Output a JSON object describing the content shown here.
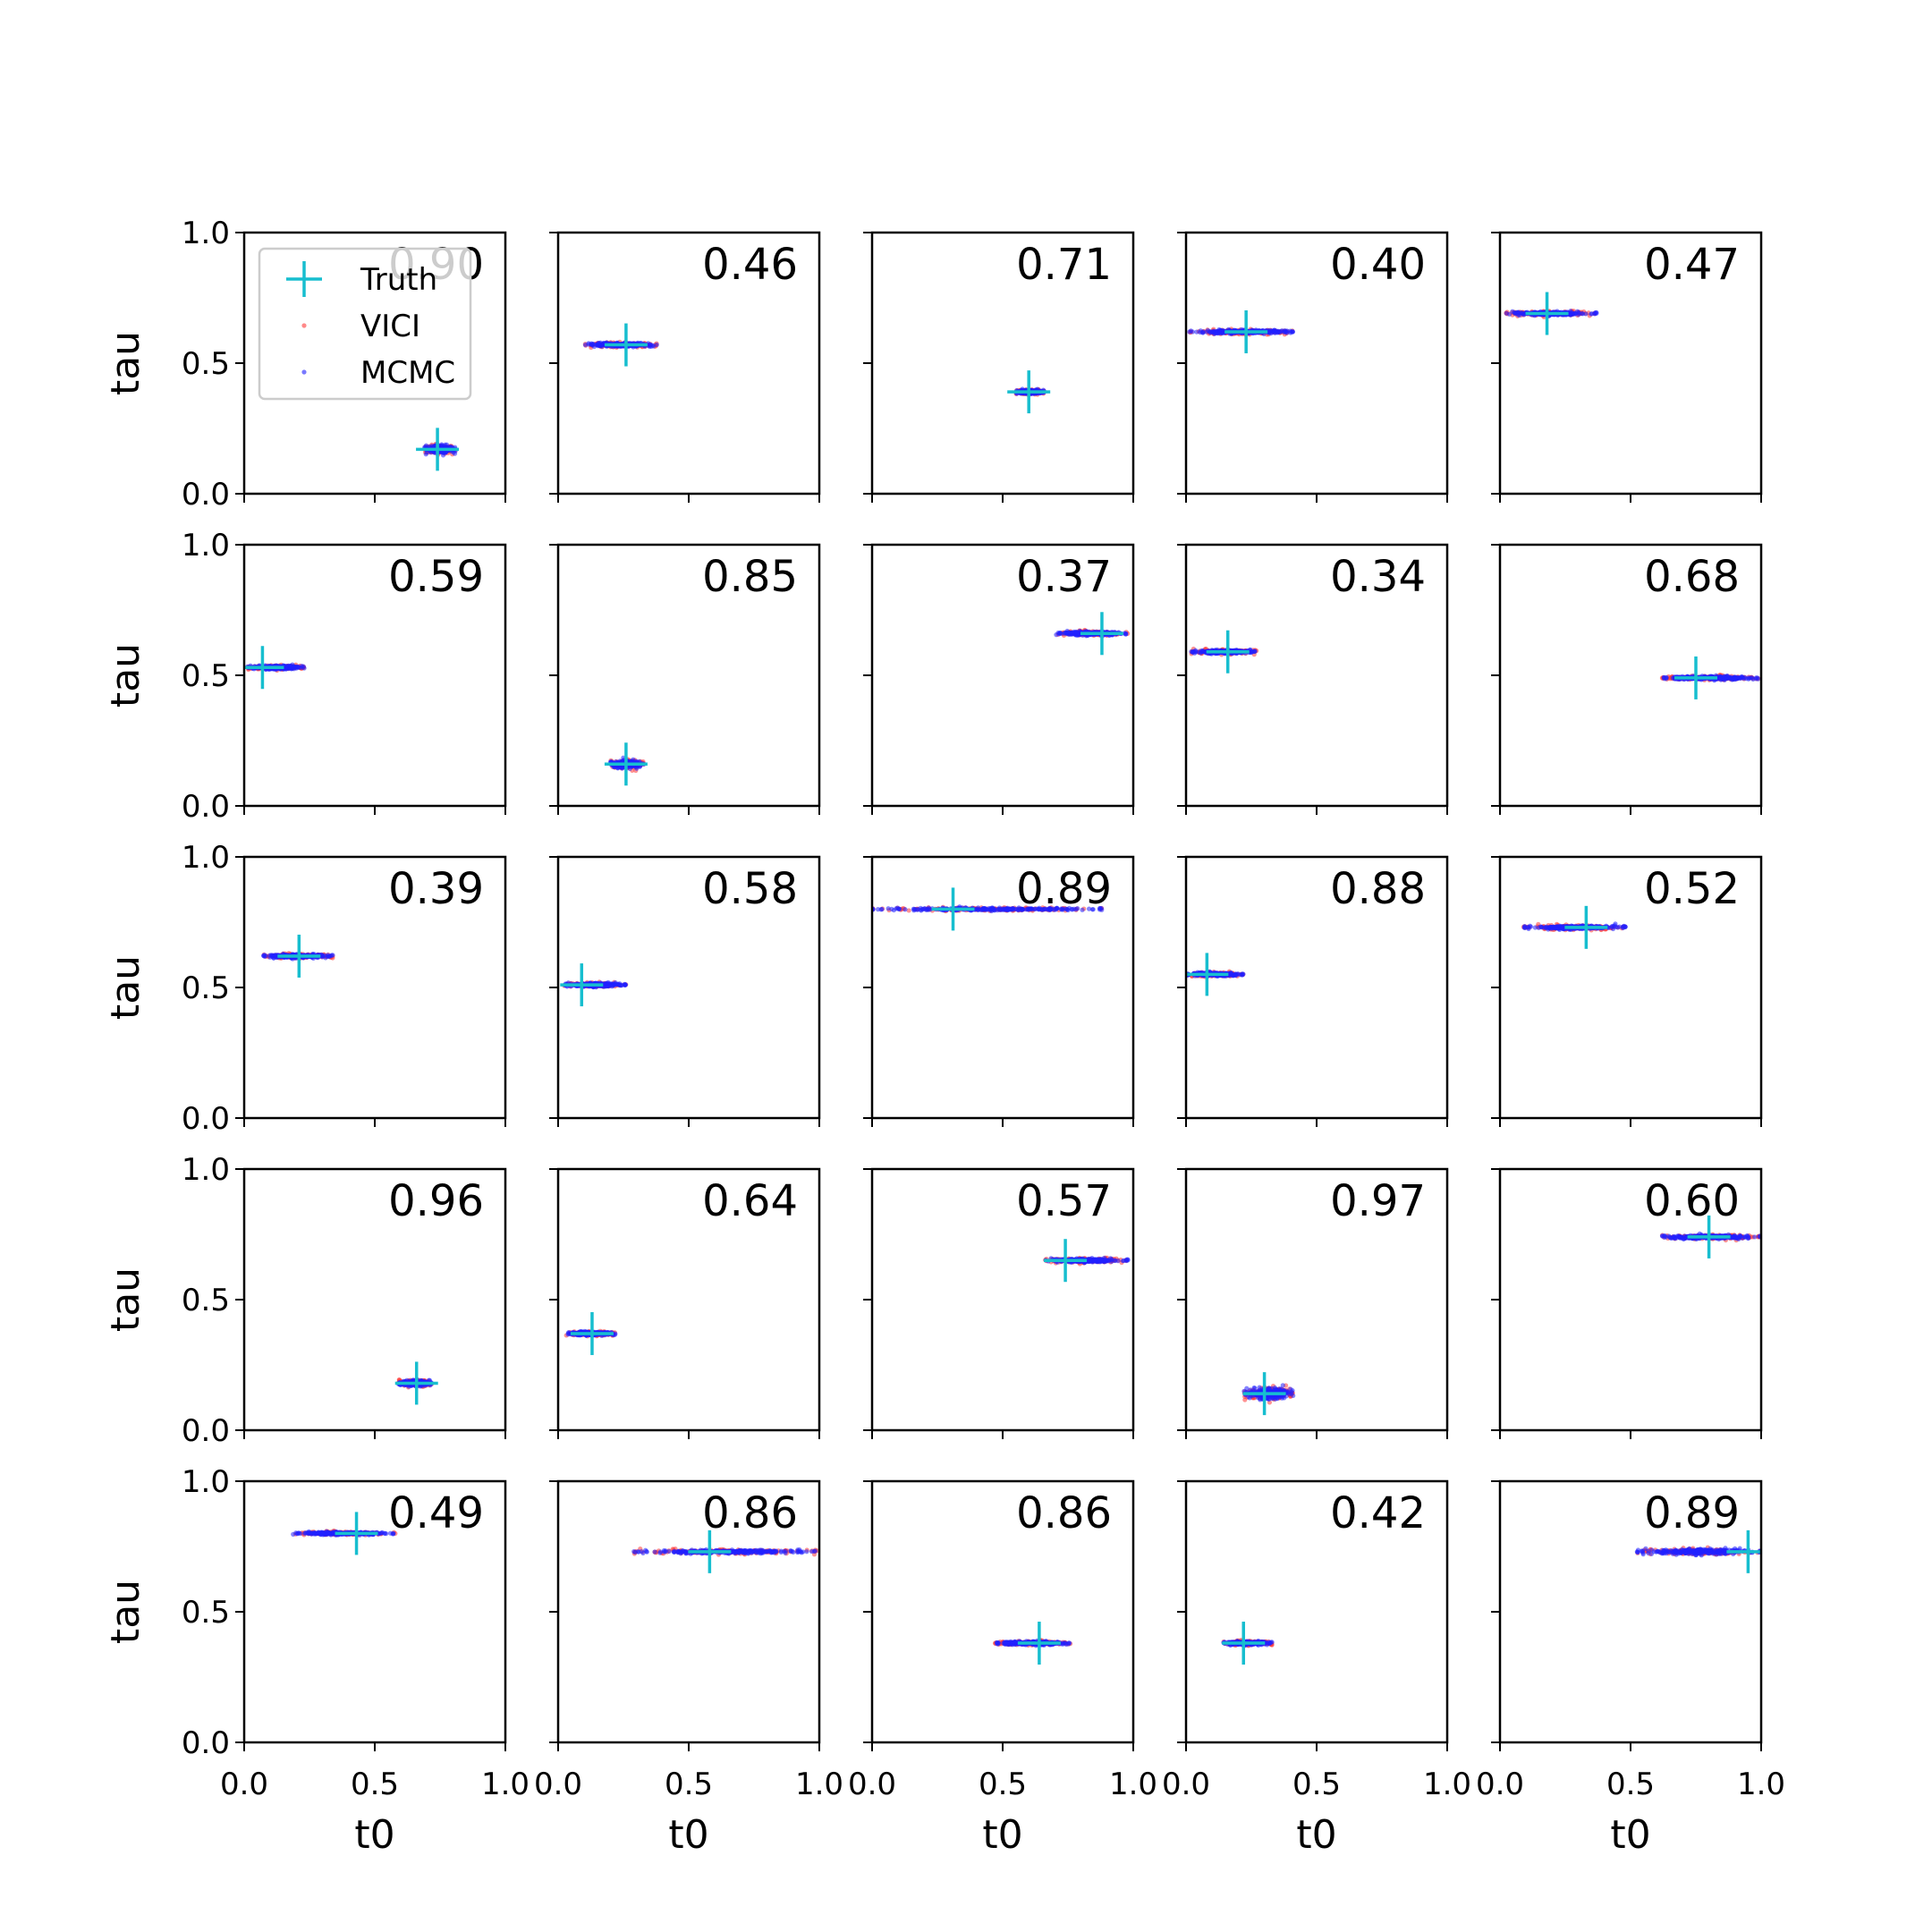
{
  "chart_data": {
    "type": "scatter",
    "layout": {
      "rows": 5,
      "cols": 5
    },
    "xlim": [
      0,
      1
    ],
    "ylim": [
      0,
      1
    ],
    "xticks": [
      "0.0",
      "0.5",
      "1.0"
    ],
    "yticks": [
      "0.0",
      "0.5",
      "1.0"
    ],
    "xlabel": "t0",
    "ylabel": "tau",
    "legend": {
      "placement": "upper-left of first panel",
      "entries": [
        {
          "key": "truth",
          "label": "Truth"
        },
        {
          "key": "vici",
          "label": "VICI"
        },
        {
          "key": "mcmc",
          "label": "MCMC"
        }
      ]
    },
    "colors": {
      "truth": "#17becf",
      "vici": "#ff3b3b",
      "mcmc": "#2020ff"
    },
    "panels": [
      {
        "value": "0.90",
        "truth": [
          0.74,
          0.17
        ],
        "t0_range": [
          0.69,
          0.81
        ],
        "tau_spread": 0.008
      },
      {
        "value": "0.46",
        "truth": [
          0.26,
          0.57
        ],
        "t0_range": [
          0.1,
          0.38
        ],
        "tau_spread": 0.004
      },
      {
        "value": "0.71",
        "truth": [
          0.6,
          0.39
        ],
        "t0_range": [
          0.55,
          0.66
        ],
        "tau_spread": 0.004
      },
      {
        "value": "0.40",
        "truth": [
          0.23,
          0.62
        ],
        "t0_range": [
          0.01,
          0.41
        ],
        "tau_spread": 0.004
      },
      {
        "value": "0.47",
        "truth": [
          0.18,
          0.69
        ],
        "t0_range": [
          0.02,
          0.37
        ],
        "tau_spread": 0.004
      },
      {
        "value": "0.59",
        "truth": [
          0.07,
          0.53
        ],
        "t0_range": [
          0.01,
          0.23
        ],
        "tau_spread": 0.004
      },
      {
        "value": "0.85",
        "truth": [
          0.26,
          0.16
        ],
        "t0_range": [
          0.2,
          0.33
        ],
        "tau_spread": 0.008
      },
      {
        "value": "0.37",
        "truth": [
          0.88,
          0.66
        ],
        "t0_range": [
          0.7,
          0.98
        ],
        "tau_spread": 0.004
      },
      {
        "value": "0.34",
        "truth": [
          0.16,
          0.59
        ],
        "t0_range": [
          0.02,
          0.27
        ],
        "tau_spread": 0.004
      },
      {
        "value": "0.68",
        "truth": [
          0.75,
          0.49
        ],
        "t0_range": [
          0.62,
          0.99
        ],
        "tau_spread": 0.004
      },
      {
        "value": "0.39",
        "truth": [
          0.21,
          0.62
        ],
        "t0_range": [
          0.07,
          0.34
        ],
        "tau_spread": 0.004
      },
      {
        "value": "0.58",
        "truth": [
          0.09,
          0.51
        ],
        "t0_range": [
          0.02,
          0.26
        ],
        "tau_spread": 0.004
      },
      {
        "value": "0.89",
        "truth": [
          0.31,
          0.8
        ],
        "t0_range": [
          0.0,
          0.88
        ],
        "tau_spread": 0.003
      },
      {
        "value": "0.88",
        "truth": [
          0.08,
          0.55
        ],
        "t0_range": [
          0.0,
          0.22
        ],
        "tau_spread": 0.004
      },
      {
        "value": "0.52",
        "truth": [
          0.33,
          0.73
        ],
        "t0_range": [
          0.09,
          0.48
        ],
        "tau_spread": 0.004
      },
      {
        "value": "0.96",
        "truth": [
          0.66,
          0.18
        ],
        "t0_range": [
          0.59,
          0.72
        ],
        "tau_spread": 0.006
      },
      {
        "value": "0.64",
        "truth": [
          0.13,
          0.37
        ],
        "t0_range": [
          0.03,
          0.22
        ],
        "tau_spread": 0.004
      },
      {
        "value": "0.57",
        "truth": [
          0.74,
          0.65
        ],
        "t0_range": [
          0.66,
          0.98
        ],
        "tau_spread": 0.004
      },
      {
        "value": "0.97",
        "truth": [
          0.3,
          0.14
        ],
        "t0_range": [
          0.22,
          0.41
        ],
        "tau_spread": 0.012
      },
      {
        "value": "0.60",
        "truth": [
          0.8,
          0.74
        ],
        "t0_range": [
          0.62,
          1.0
        ],
        "tau_spread": 0.004
      },
      {
        "value": "0.49",
        "truth": [
          0.43,
          0.8
        ],
        "t0_range": [
          0.18,
          0.58
        ],
        "tau_spread": 0.003
      },
      {
        "value": "0.86",
        "truth": [
          0.58,
          0.73
        ],
        "t0_range": [
          0.29,
          0.99
        ],
        "tau_spread": 0.004
      },
      {
        "value": "0.86",
        "truth": [
          0.64,
          0.38
        ],
        "t0_range": [
          0.47,
          0.76
        ],
        "tau_spread": 0.004
      },
      {
        "value": "0.42",
        "truth": [
          0.22,
          0.38
        ],
        "t0_range": [
          0.14,
          0.33
        ],
        "tau_spread": 0.004
      },
      {
        "value": "0.89",
        "truth": [
          0.95,
          0.73
        ],
        "t0_range": [
          0.52,
          1.0
        ],
        "tau_spread": 0.006
      }
    ]
  }
}
